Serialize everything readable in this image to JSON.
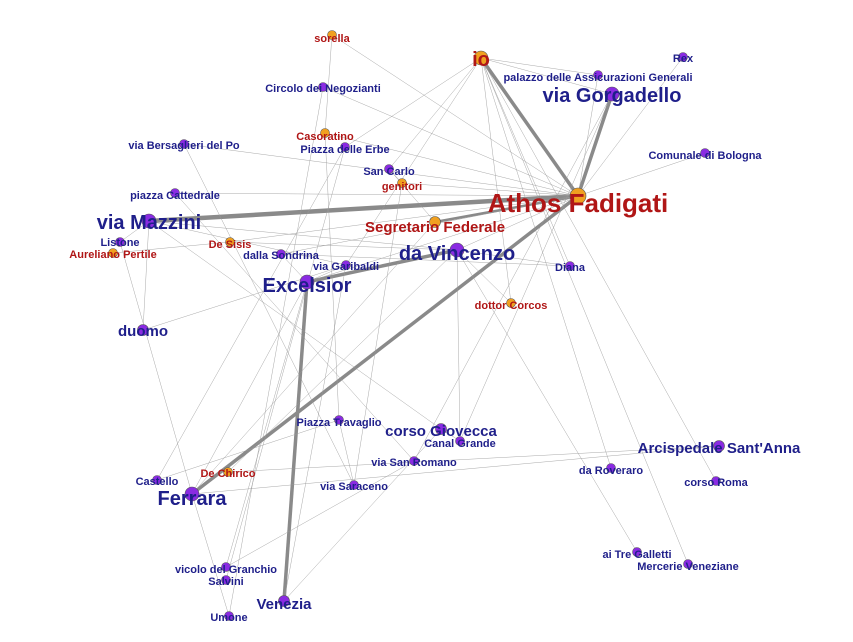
{
  "colors": {
    "place_node": "#8a2be2",
    "person_node": "#f0a020",
    "place_label": "#1f1f8a",
    "person_label": "#b01616",
    "edge_thin": "#9a9a9a",
    "edge_thick": "#8a8a8a"
  },
  "nodes": [
    {
      "id": "athos",
      "label": "Athos Fadigati",
      "kind": "person",
      "size": "xl"
    },
    {
      "id": "io",
      "label": "io",
      "kind": "person",
      "size": "l"
    },
    {
      "id": "segretario",
      "label": "Segretario Federale",
      "kind": "person",
      "size": "m"
    },
    {
      "id": "sorella",
      "label": "sorella",
      "kind": "person",
      "size": "s"
    },
    {
      "id": "casoratino",
      "label": "Casoratino",
      "kind": "person",
      "size": "s"
    },
    {
      "id": "sancarlo",
      "label": "San Carlo",
      "kind": "place",
      "size": "s"
    },
    {
      "id": "genitori",
      "label": "genitori",
      "kind": "person",
      "size": "s"
    },
    {
      "id": "dedisis",
      "label": "De Sisis",
      "kind": "person",
      "size": "s"
    },
    {
      "id": "aureliano",
      "label": "Aureliano Pertile",
      "kind": "person",
      "size": "s"
    },
    {
      "id": "dottor",
      "label": "dottor Corcos",
      "kind": "person",
      "size": "s"
    },
    {
      "id": "dechirico",
      "label": "De Chirico",
      "kind": "person",
      "size": "s"
    },
    {
      "id": "viagorgadello",
      "label": "via Gorgadello",
      "kind": "place",
      "size": "l"
    },
    {
      "id": "palazzo",
      "label": "palazzo delle Assicurazioni Generali",
      "kind": "place",
      "size": "s"
    },
    {
      "id": "rex",
      "label": "Rex",
      "kind": "place",
      "size": "s"
    },
    {
      "id": "circolo",
      "label": "Circolo dei Negozianti",
      "kind": "place",
      "size": "s"
    },
    {
      "id": "bersaglieri",
      "label": "via Bersaglieri del Po",
      "kind": "place",
      "size": "s"
    },
    {
      "id": "piazzaerbe",
      "label": "Piazza delle Erbe",
      "kind": "place",
      "size": "s"
    },
    {
      "id": "comunale",
      "label": "Comunale di Bologna",
      "kind": "place",
      "size": "s"
    },
    {
      "id": "cattedrale",
      "label": "piazza Cattedrale",
      "kind": "place",
      "size": "s"
    },
    {
      "id": "mazzini",
      "label": "via Mazzini",
      "kind": "place",
      "size": "l"
    },
    {
      "id": "listone",
      "label": "Listone",
      "kind": "place",
      "size": "s"
    },
    {
      "id": "sondrina",
      "label": "dalla Sondrina",
      "kind": "place",
      "size": "s"
    },
    {
      "id": "davincenzo",
      "label": "da Vincenzo",
      "kind": "place",
      "size": "l"
    },
    {
      "id": "garibaldi",
      "label": "via Garibaldi",
      "kind": "place",
      "size": "s"
    },
    {
      "id": "diana",
      "label": "Diana",
      "kind": "place",
      "size": "s"
    },
    {
      "id": "excelsior",
      "label": "Excelsior",
      "kind": "place",
      "size": "l"
    },
    {
      "id": "duomo",
      "label": "duomo",
      "kind": "place",
      "size": "m"
    },
    {
      "id": "piazzatravaglio",
      "label": "Piazza Travaglio",
      "kind": "place",
      "size": "s"
    },
    {
      "id": "giovecca",
      "label": "corso Giovecca",
      "kind": "place",
      "size": "m"
    },
    {
      "id": "canalgrande",
      "label": "Canal Grande",
      "kind": "place",
      "size": "s"
    },
    {
      "id": "arcispedale",
      "label": "Arcispedale Sant'Anna",
      "kind": "place",
      "size": "m"
    },
    {
      "id": "sanromano",
      "label": "via San Romano",
      "kind": "place",
      "size": "s"
    },
    {
      "id": "roveraro",
      "label": "da Roveraro",
      "kind": "place",
      "size": "s"
    },
    {
      "id": "corsoroma",
      "label": "corso Roma",
      "kind": "place",
      "size": "s"
    },
    {
      "id": "castello",
      "label": "Castello",
      "kind": "place",
      "size": "s"
    },
    {
      "id": "ferrara",
      "label": "Ferrara",
      "kind": "place",
      "size": "l"
    },
    {
      "id": "saraceno",
      "label": "via Saraceno",
      "kind": "place",
      "size": "s"
    },
    {
      "id": "tregalletti",
      "label": "ai Tre Galletti",
      "kind": "place",
      "size": "s"
    },
    {
      "id": "mercerie",
      "label": "Mercerie Veneziane",
      "kind": "place",
      "size": "s"
    },
    {
      "id": "granchio",
      "label": "vicolo del Granchio",
      "kind": "place",
      "size": "s"
    },
    {
      "id": "salvini",
      "label": "Salvini",
      "kind": "place",
      "size": "s"
    },
    {
      "id": "venezia",
      "label": "Venezia",
      "kind": "place",
      "size": "m"
    },
    {
      "id": "umone",
      "label": "Umone",
      "kind": "place",
      "size": "s"
    }
  ],
  "edges": [
    [
      "athos",
      "mazzini",
      4
    ],
    [
      "athos",
      "io",
      3
    ],
    [
      "athos",
      "viagorgadello",
      3
    ],
    [
      "athos",
      "ferrara",
      3
    ],
    [
      "excelsior",
      "davincenzo",
      3
    ],
    [
      "excelsior",
      "venezia",
      3
    ],
    [
      "athos",
      "segretario",
      2
    ],
    [
      "io",
      "viagorgadello",
      1
    ],
    [
      "io",
      "palazzo",
      1
    ],
    [
      "io",
      "mercerie",
      1
    ],
    [
      "io",
      "roveraro",
      1
    ],
    [
      "io",
      "sancarlo",
      1
    ],
    [
      "io",
      "piazzaerbe",
      1
    ],
    [
      "io",
      "garibaldi",
      1
    ],
    [
      "io",
      "corsoroma",
      1
    ],
    [
      "io",
      "diana",
      1
    ],
    [
      "io",
      "dottor",
      1
    ],
    [
      "athos",
      "comunale",
      1
    ],
    [
      "athos",
      "palazzo",
      1
    ],
    [
      "athos",
      "circolo",
      1
    ],
    [
      "athos",
      "cattedrale",
      1
    ],
    [
      "athos",
      "bersaglieri",
      1
    ],
    [
      "athos",
      "sondrina",
      1
    ],
    [
      "athos",
      "excelsior",
      1
    ],
    [
      "athos",
      "sorella",
      1
    ],
    [
      "athos",
      "casoratino",
      1
    ],
    [
      "athos",
      "genitori",
      1
    ],
    [
      "athos",
      "dedisis",
      1
    ],
    [
      "athos",
      "davincenzo",
      1
    ],
    [
      "athos",
      "rex",
      1
    ],
    [
      "mazzini",
      "listone",
      1
    ],
    [
      "mazzini",
      "duomo",
      1
    ],
    [
      "mazzini",
      "davincenzo",
      1
    ],
    [
      "mazzini",
      "giovecca",
      1
    ],
    [
      "mazzini",
      "garibaldi",
      1
    ],
    [
      "davincenzo",
      "tregalletti",
      1
    ],
    [
      "davincenzo",
      "canalgrande",
      1
    ],
    [
      "davincenzo",
      "dechirico",
      1
    ],
    [
      "davincenzo",
      "dottor",
      1
    ],
    [
      "davincenzo",
      "diana",
      1
    ],
    [
      "excelsior",
      "ferrara",
      1
    ],
    [
      "excelsior",
      "garibaldi",
      1
    ],
    [
      "excelsior",
      "sondrina",
      1
    ],
    [
      "excelsior",
      "granchio",
      1
    ],
    [
      "circolo",
      "umone",
      1
    ],
    [
      "piazzaerbe",
      "salvini",
      1
    ],
    [
      "piazzaerbe",
      "castello",
      1
    ],
    [
      "bersaglieri",
      "saraceno",
      1
    ],
    [
      "cattedrale",
      "sanromano",
      1
    ],
    [
      "aureliano",
      "dedisis",
      1
    ],
    [
      "listone",
      "ferrara",
      1
    ],
    [
      "arcispedale",
      "ferrara",
      1
    ],
    [
      "arcispedale",
      "dechirico",
      1
    ],
    [
      "piazzatravaglio",
      "castello",
      1
    ],
    [
      "piazzatravaglio",
      "saraceno",
      1
    ],
    [
      "giovecca",
      "canalgrande",
      1
    ],
    [
      "giovecca",
      "venezia",
      1
    ],
    [
      "sanromano",
      "granchio",
      1
    ],
    [
      "ferrara",
      "umone",
      1
    ],
    [
      "garibaldi",
      "duomo",
      1
    ],
    [
      "garibaldi",
      "venezia",
      1
    ],
    [
      "sancarlo",
      "genitori",
      1
    ],
    [
      "segretario",
      "sancarlo",
      1
    ],
    [
      "segretario",
      "ferrara",
      1
    ],
    [
      "viagorgadello",
      "canalgrande",
      1
    ],
    [
      "viagorgadello",
      "sanromano",
      1
    ],
    [
      "dedisis",
      "davincenzo",
      1
    ],
    [
      "sondrina",
      "diana",
      1
    ],
    [
      "casoratino",
      "piazzatravaglio",
      1
    ],
    [
      "sorella",
      "casoratino",
      1
    ],
    [
      "genitori",
      "saraceno",
      1
    ]
  ]
}
